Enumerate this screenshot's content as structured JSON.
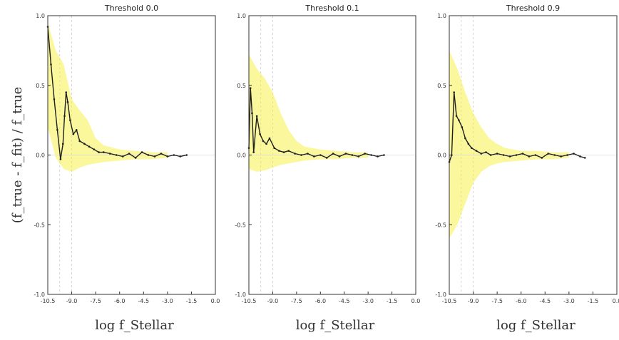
{
  "chart_data": [
    {
      "type": "line",
      "title": "Threshold 0.0",
      "xlabel": "log f_Stellar",
      "ylabel": "(f_true - f_fit) / f_true",
      "xlim": [
        -10.5,
        0.0
      ],
      "ylim": [
        -1.0,
        1.0
      ],
      "yticks": [
        -1.0,
        -0.5,
        0.0,
        0.5,
        1.0
      ],
      "xticks": [
        "-10.5",
        "-9.0",
        "-7.5",
        "-6.0",
        "-4.5",
        "-3.0",
        "-1.5",
        "0.0"
      ],
      "grid": false,
      "series": [
        {
          "role": "median",
          "color": "#1f1f1f",
          "x": [
            -10.5,
            -10.3,
            -10.1,
            -9.9,
            -9.7,
            -9.55,
            -9.45,
            -9.35,
            -9.25,
            -9.1,
            -8.9,
            -8.7,
            -8.5,
            -8.2,
            -7.9,
            -7.6,
            -7.3,
            -7.0,
            -6.6,
            -6.2,
            -5.8,
            -5.4,
            -5.0,
            -4.6,
            -4.2,
            -3.8,
            -3.4,
            -3.0,
            -2.6,
            -2.2,
            -1.8
          ],
          "y": [
            0.92,
            0.65,
            0.4,
            0.18,
            -0.03,
            0.08,
            0.28,
            0.45,
            0.38,
            0.25,
            0.15,
            0.18,
            0.1,
            0.08,
            0.06,
            0.04,
            0.02,
            0.02,
            0.01,
            0.0,
            -0.01,
            0.01,
            -0.02,
            0.02,
            0.0,
            -0.01,
            0.01,
            -0.01,
            0.0,
            -0.01,
            0.0
          ]
        },
        {
          "role": "band",
          "color": "#f5f04a",
          "x": [
            -10.5,
            -10.0,
            -9.5,
            -9.0,
            -8.5,
            -8.0,
            -7.5,
            -7.0,
            -6.0,
            -5.0,
            -4.0,
            -3.0
          ],
          "upper": [
            0.95,
            0.75,
            0.65,
            0.4,
            0.32,
            0.25,
            0.12,
            0.07,
            0.04,
            0.03,
            0.02,
            0.02
          ],
          "lower": [
            0.2,
            -0.02,
            -0.1,
            -0.12,
            -0.09,
            -0.07,
            -0.06,
            -0.05,
            -0.04,
            -0.03,
            -0.03,
            -0.02
          ]
        }
      ]
    },
    {
      "type": "line",
      "title": "Threshold 0.1",
      "xlabel": "log f_Stellar",
      "xlim": [
        -10.5,
        0.0
      ],
      "ylim": [
        -1.0,
        1.0
      ],
      "yticks": [
        -1.0,
        -0.5,
        0.0,
        0.5,
        1.0
      ],
      "xticks": [
        "-10.5",
        "-9.0",
        "-7.5",
        "-6.0",
        "-4.5",
        "-3.0",
        "-1.5",
        "0.0"
      ],
      "grid": false,
      "series": [
        {
          "role": "median",
          "color": "#1f1f1f",
          "x": [
            -10.5,
            -10.4,
            -10.3,
            -10.2,
            -10.0,
            -9.8,
            -9.6,
            -9.4,
            -9.2,
            -8.9,
            -8.6,
            -8.3,
            -8.0,
            -7.6,
            -7.2,
            -6.8,
            -6.4,
            -6.0,
            -5.6,
            -5.2,
            -4.8,
            -4.4,
            -4.0,
            -3.6,
            -3.2,
            -2.8,
            -2.4,
            -2.0
          ],
          "y": [
            0.05,
            0.48,
            0.3,
            0.02,
            0.28,
            0.15,
            0.1,
            0.08,
            0.12,
            0.05,
            0.03,
            0.02,
            0.03,
            0.01,
            0.0,
            0.01,
            -0.01,
            0.0,
            -0.02,
            0.01,
            -0.01,
            0.01,
            0.0,
            -0.01,
            0.01,
            0.0,
            -0.01,
            0.0
          ]
        },
        {
          "role": "band",
          "color": "#f5f04a",
          "x": [
            -10.5,
            -10.0,
            -9.5,
            -9.0,
            -8.5,
            -8.0,
            -7.5,
            -7.0,
            -6.0,
            -5.0,
            -4.0,
            -3.0
          ],
          "upper": [
            0.72,
            0.62,
            0.55,
            0.45,
            0.3,
            0.18,
            0.1,
            0.06,
            0.04,
            0.03,
            0.02,
            0.02
          ],
          "lower": [
            -0.1,
            -0.12,
            -0.11,
            -0.09,
            -0.07,
            -0.06,
            -0.05,
            -0.04,
            -0.03,
            -0.03,
            -0.02,
            -0.02
          ]
        }
      ]
    },
    {
      "type": "line",
      "title": "Threshold 0.9",
      "xlabel": "log f_Stellar",
      "xlim": [
        -10.5,
        0.0
      ],
      "ylim": [
        -1.0,
        1.0
      ],
      "yticks": [
        -1.0,
        -0.5,
        0.0,
        0.5,
        1.0
      ],
      "xticks": [
        "-10.5",
        "-9.0",
        "-7.5",
        "-6.0",
        "-4.5",
        "-3.0",
        "-1.5",
        "0.0"
      ],
      "grid": false,
      "series": [
        {
          "role": "median",
          "color": "#1f1f1f",
          "x": [
            -10.5,
            -10.35,
            -10.2,
            -10.05,
            -9.9,
            -9.7,
            -9.5,
            -9.3,
            -9.1,
            -8.8,
            -8.5,
            -8.2,
            -7.9,
            -7.5,
            -7.1,
            -6.7,
            -6.3,
            -5.9,
            -5.5,
            -5.1,
            -4.7,
            -4.3,
            -3.9,
            -3.5,
            -3.1,
            -2.7,
            -2.3,
            -2.0
          ],
          "y": [
            -0.05,
            0.0,
            0.45,
            0.28,
            0.25,
            0.2,
            0.12,
            0.08,
            0.05,
            0.03,
            0.01,
            0.02,
            0.0,
            0.01,
            0.0,
            -0.01,
            0.0,
            0.01,
            -0.01,
            0.0,
            -0.02,
            0.01,
            0.0,
            -0.01,
            0.0,
            0.01,
            -0.01,
            -0.02
          ]
        },
        {
          "role": "band",
          "color": "#f5f04a",
          "x": [
            -10.5,
            -10.0,
            -9.5,
            -9.0,
            -8.5,
            -8.0,
            -7.5,
            -7.0,
            -6.0,
            -5.0,
            -4.0,
            -3.0
          ],
          "upper": [
            0.75,
            0.62,
            0.45,
            0.3,
            0.2,
            0.12,
            0.08,
            0.05,
            0.03,
            0.03,
            0.02,
            0.02
          ],
          "lower": [
            -0.6,
            -0.5,
            -0.35,
            -0.2,
            -0.12,
            -0.08,
            -0.06,
            -0.05,
            -0.04,
            -0.03,
            -0.03,
            -0.02
          ]
        }
      ]
    }
  ]
}
